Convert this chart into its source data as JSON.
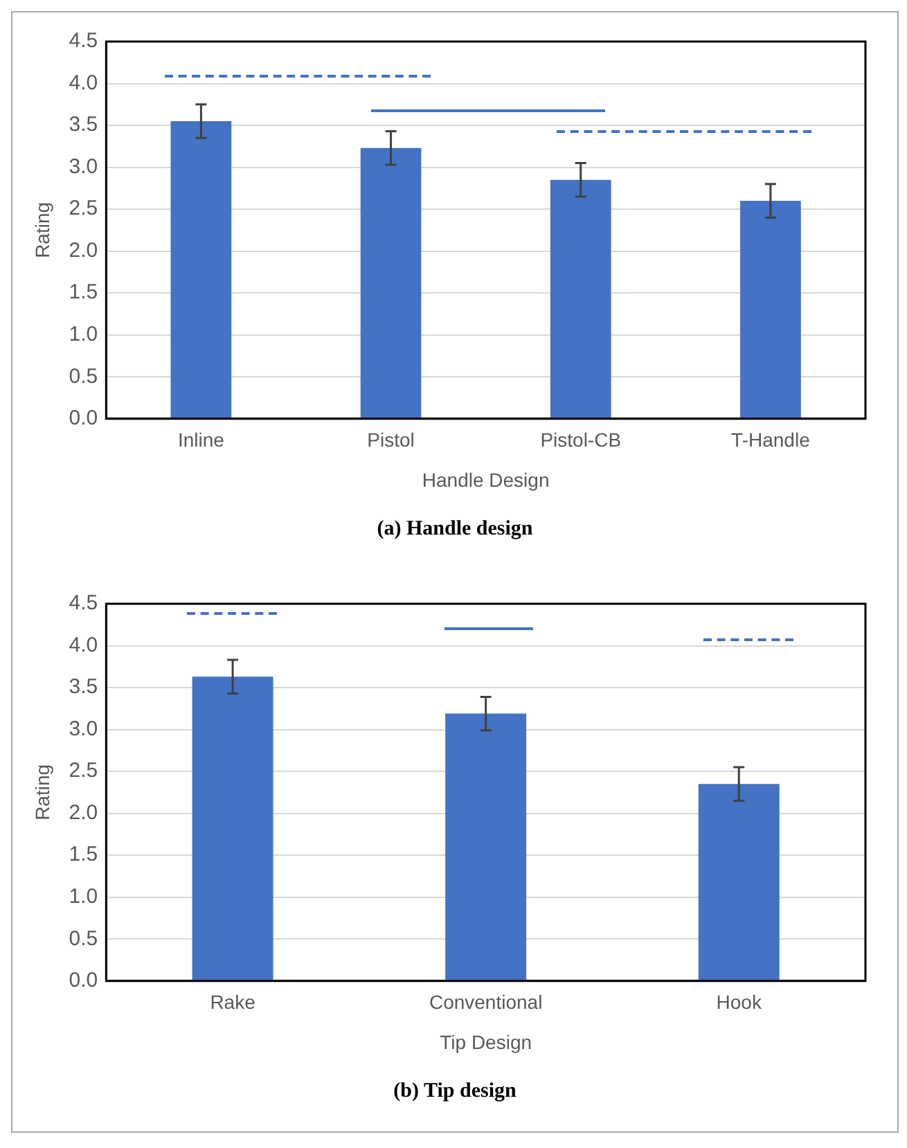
{
  "chart_data": [
    {
      "type": "bar",
      "title": "(a) Handle design",
      "xlabel": "Handle Design",
      "ylabel": "Rating",
      "categories": [
        "Inline",
        "Pistol",
        "Pistol-CB",
        "T-Handle"
      ],
      "values": [
        3.55,
        3.23,
        2.85,
        2.6
      ],
      "errors": [
        0.2,
        0.2,
        0.2,
        0.2
      ],
      "color": "#4472c4",
      "ylim": [
        0,
        4.5
      ],
      "yticks": [
        {
          "value": 0,
          "label": "0.0"
        },
        {
          "value": 0.5,
          "label": "0.5"
        },
        {
          "value": 1,
          "label": "1.0"
        },
        {
          "value": 1.5,
          "label": "1.5"
        },
        {
          "value": 2,
          "label": "2.0"
        },
        {
          "value": 2.5,
          "label": "2.5"
        },
        {
          "value": 3,
          "label": "3.0"
        },
        {
          "value": 3.5,
          "label": "3.5"
        },
        {
          "value": 4,
          "label": "4.0"
        },
        {
          "value": 4.5,
          "label": "4.5"
        }
      ],
      "grid": "y"
    },
    {
      "type": "bar",
      "title": "(b) Tip design",
      "xlabel": "Tip Design",
      "ylabel": "Rating",
      "categories": [
        "Rake",
        "Conventional",
        "Hook"
      ],
      "values": [
        3.63,
        3.19,
        2.35
      ],
      "errors": [
        0.2,
        0.2,
        0.2
      ],
      "color": "#4472c4",
      "ylim": [
        0,
        4.5
      ],
      "yticks": [
        {
          "value": 0,
          "label": "0.0"
        },
        {
          "value": 0.5,
          "label": "0.5"
        },
        {
          "value": 1,
          "label": "1.0"
        },
        {
          "value": 1.5,
          "label": "1.5"
        },
        {
          "value": 2,
          "label": "2.0"
        },
        {
          "value": 2.5,
          "label": "2.5"
        },
        {
          "value": 3,
          "label": "3.0"
        },
        {
          "value": 3.5,
          "label": "3.5"
        },
        {
          "value": 4,
          "label": "4.0"
        },
        {
          "value": 4.5,
          "label": "4.5"
        }
      ],
      "grid": "y"
    }
  ]
}
